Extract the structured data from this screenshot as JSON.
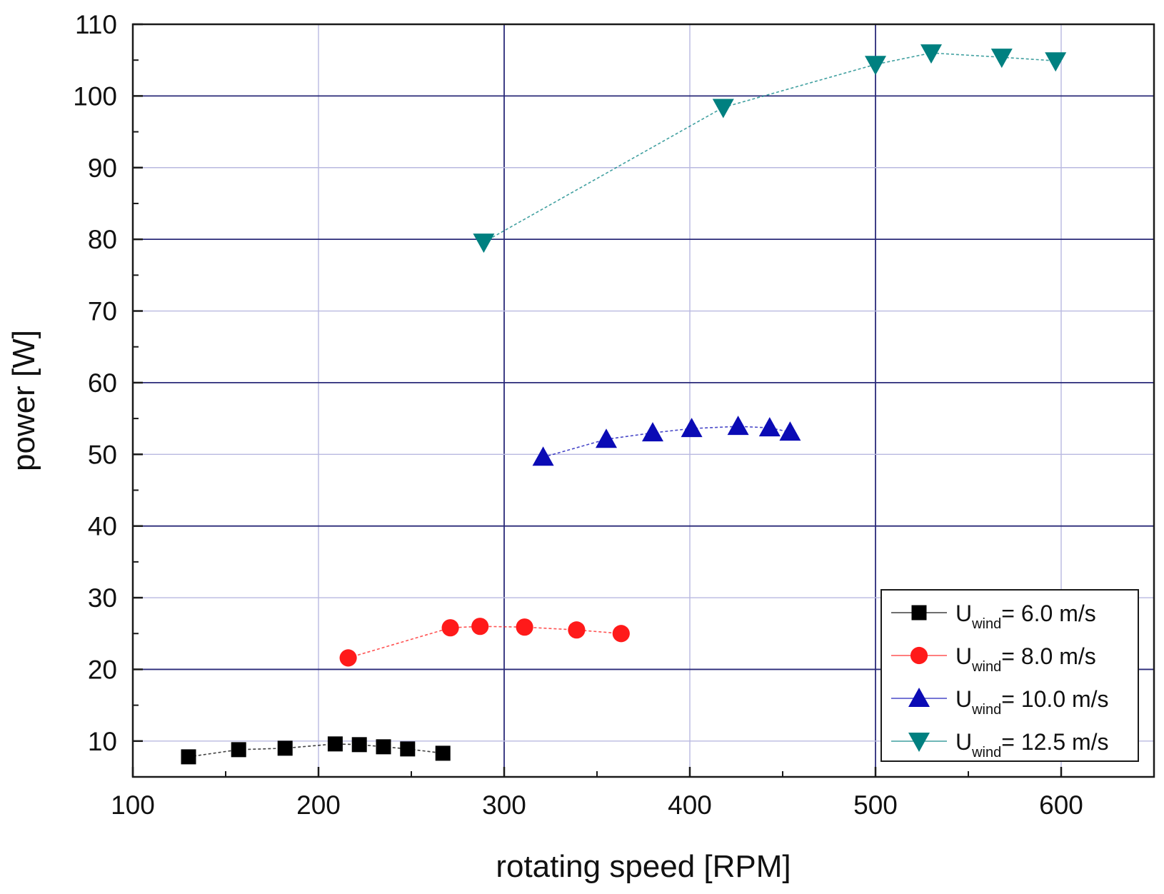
{
  "chart_data": {
    "type": "line",
    "title": "",
    "xlabel": "rotating speed [RPM]",
    "ylabel": "power [W]",
    "xlim": [
      100,
      650
    ],
    "ylim": [
      5,
      110
    ],
    "xticks": [
      100,
      200,
      300,
      400,
      500,
      600
    ],
    "yticks": [
      10,
      20,
      30,
      40,
      50,
      60,
      70,
      80,
      90,
      100,
      110
    ],
    "grid": true,
    "legend_position": "bottom-right",
    "series": [
      {
        "name": "U_wind = 6.0 m/s",
        "legend_main": "U",
        "legend_sub": "wind",
        "legend_value": "= 6.0 m/s",
        "color": "#000000",
        "marker": "square",
        "x": [
          130,
          157,
          182,
          209,
          222,
          235,
          248,
          267
        ],
        "y": [
          7.8,
          8.8,
          9.0,
          9.6,
          9.5,
          9.2,
          8.9,
          8.3
        ]
      },
      {
        "name": "U_wind = 8.0 m/s",
        "legend_main": "U",
        "legend_sub": "wind",
        "legend_value": "= 8.0 m/s",
        "color": "#ff1a1a",
        "marker": "circle",
        "x": [
          216,
          271,
          287,
          311,
          339,
          363
        ],
        "y": [
          21.6,
          25.8,
          26.0,
          25.9,
          25.5,
          25.0
        ]
      },
      {
        "name": "U_wind = 10.0 m/s",
        "legend_main": "U",
        "legend_sub": "wind",
        "legend_value": "= 10.0 m/s",
        "color": "#0b0bb5",
        "marker": "triangle-up",
        "x": [
          321,
          355,
          380,
          401,
          426,
          443,
          454
        ],
        "y": [
          49.6,
          52.1,
          53.0,
          53.6,
          53.9,
          53.7,
          53.1
        ]
      },
      {
        "name": "U_wind = 12.5 m/s",
        "legend_main": "U",
        "legend_sub": "wind",
        "legend_value": "= 12.5 m/s",
        "color": "#008080",
        "marker": "triangle-down",
        "x": [
          289,
          418,
          500,
          530,
          568,
          597
        ],
        "y": [
          79.6,
          98.4,
          104.4,
          106.0,
          105.4,
          104.9
        ]
      }
    ]
  }
}
